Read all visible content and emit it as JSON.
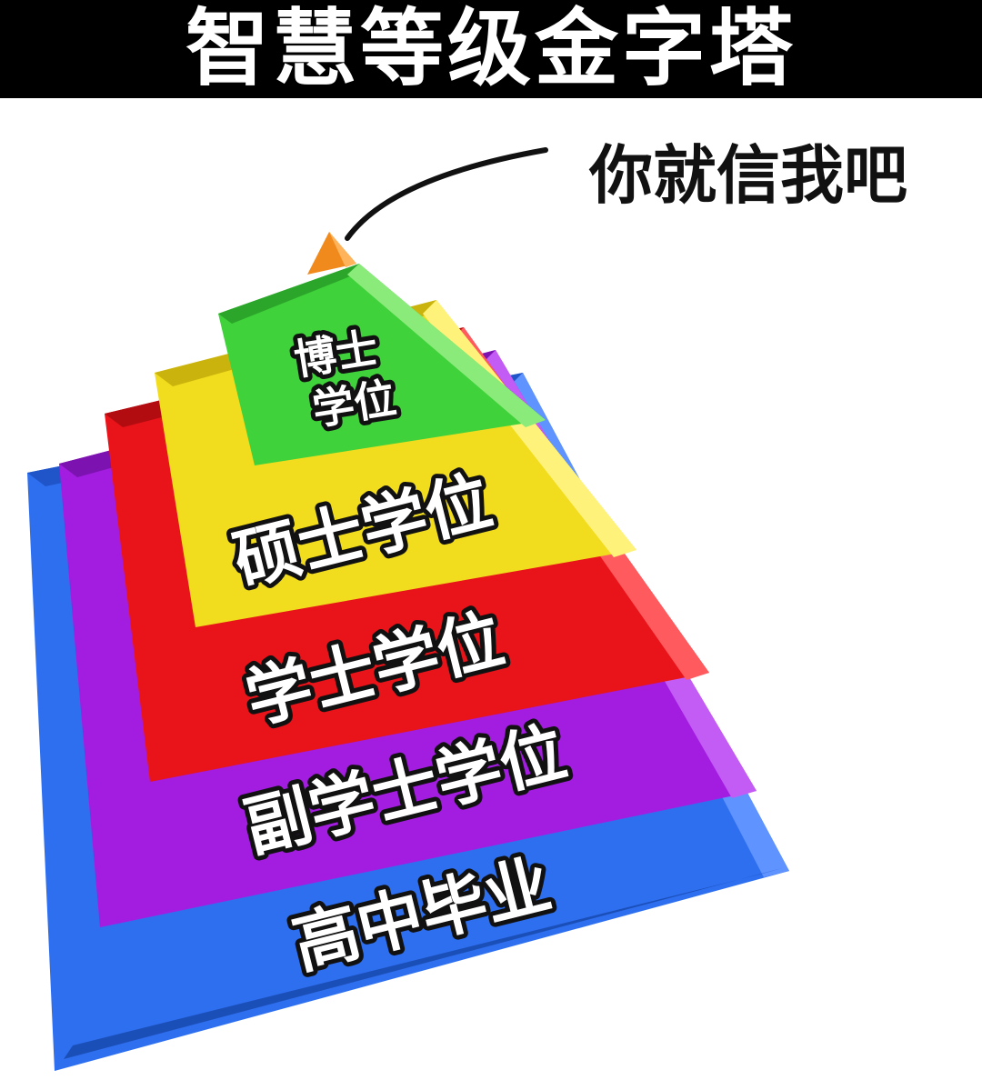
{
  "title": "智慧等级金字塔",
  "callout": "你就信我吧",
  "tiers": [
    {
      "line1": "博士",
      "line2": "学位",
      "color": "#3fd23a"
    },
    {
      "label": "硕士学位",
      "color": "#f2dc1e"
    },
    {
      "label": "学士学位",
      "color": "#e8141a"
    },
    {
      "label": "副学士学位",
      "color": "#a31de0"
    },
    {
      "label": "高中毕业",
      "color": "#2e6ff0"
    }
  ],
  "apex_color": "#f08a1c"
}
